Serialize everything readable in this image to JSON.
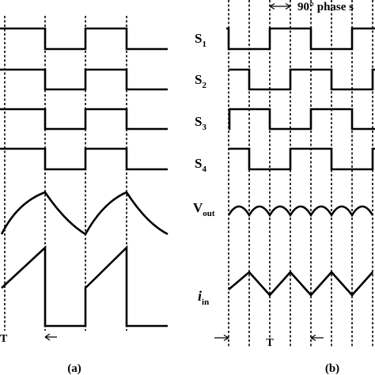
{
  "panel_a": {
    "caption": "(a)",
    "period_label": "T"
  },
  "panel_b": {
    "caption": "(b)",
    "phase_label": "90° phase s",
    "signals": [
      {
        "name": "S",
        "sub": "1"
      },
      {
        "name": "S",
        "sub": "2"
      },
      {
        "name": "S",
        "sub": "3"
      },
      {
        "name": "S",
        "sub": "4"
      }
    ],
    "vout": {
      "name": "V",
      "sub": "out"
    },
    "iin": {
      "name": "i",
      "sub": "in"
    },
    "period_label": "T"
  }
}
